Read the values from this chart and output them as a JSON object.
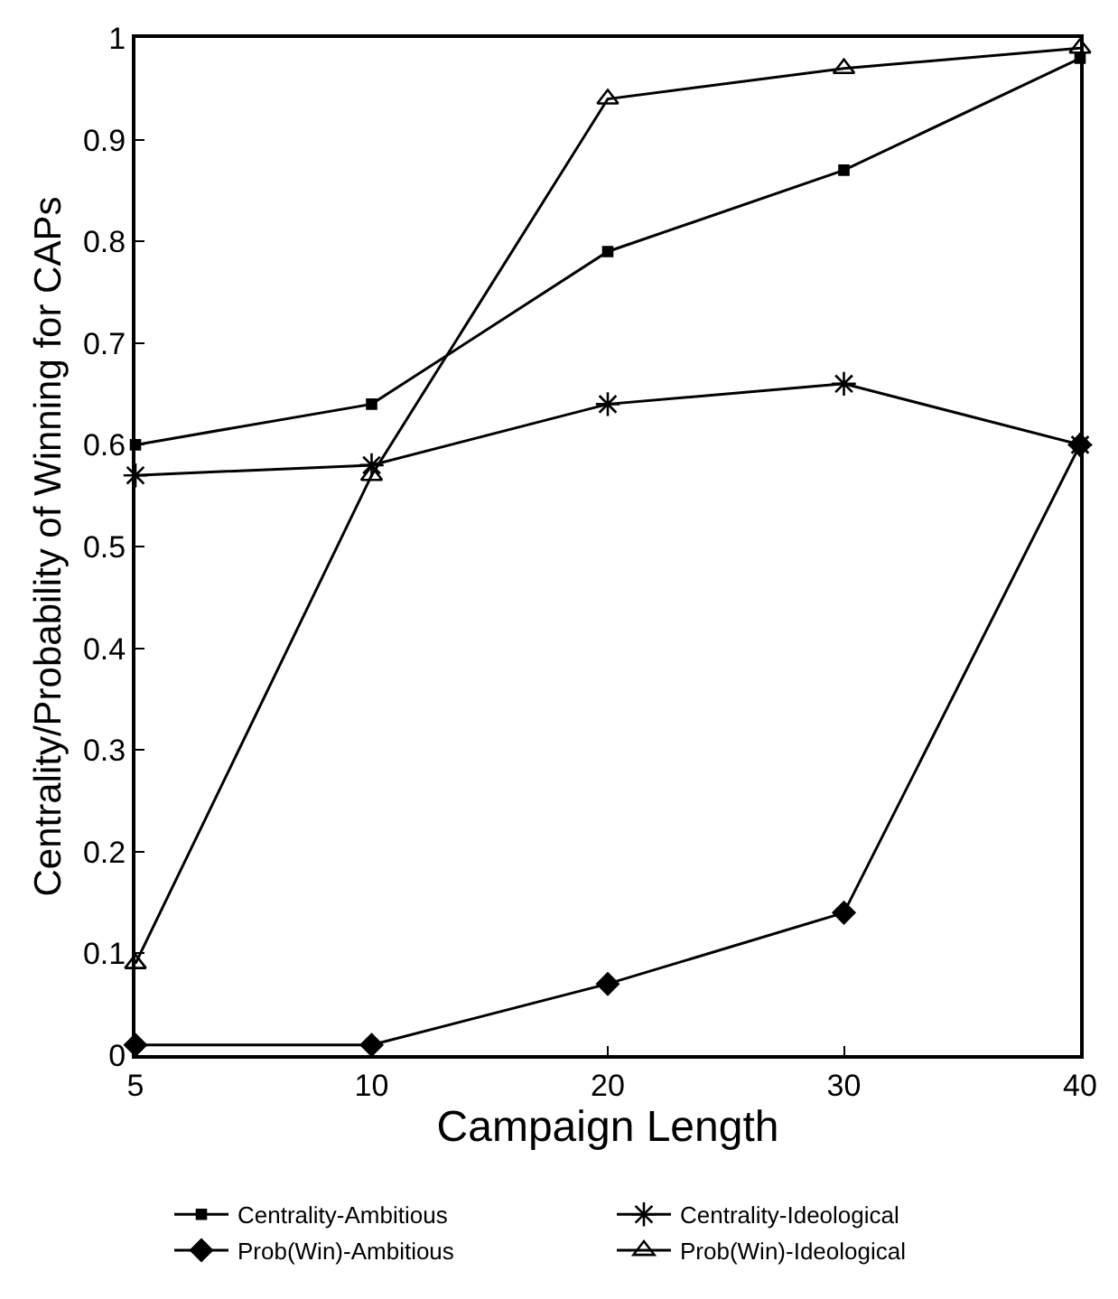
{
  "chart_data": {
    "type": "line",
    "xlabel": "Campaign Length",
    "ylabel": "Centrality/Probability of Winning for CAPs",
    "categories": [
      "5",
      "10",
      "20",
      "30",
      "40"
    ],
    "ylim": [
      0,
      1
    ],
    "yticks": [
      0,
      0.1,
      0.2,
      0.3,
      0.4,
      0.5,
      0.6,
      0.7,
      0.8,
      0.9,
      1
    ],
    "legend": "bottom",
    "line_style": "solid",
    "series": [
      {
        "name": "Centrality-Ambitious",
        "color": "#000000",
        "marker": "square",
        "values": [
          0.6,
          0.64,
          0.79,
          0.87,
          0.98
        ]
      },
      {
        "name": "Centrality-Ideological",
        "color": "#000000",
        "marker": "cross",
        "values": [
          0.57,
          0.58,
          0.64,
          0.66,
          0.6
        ]
      },
      {
        "name": "Prob(Win)-Ambitious",
        "color": "#000000",
        "marker": "diamond",
        "values": [
          0.01,
          0.01,
          0.07,
          0.14,
          0.6
        ]
      },
      {
        "name": "Prob(Win)-Ideological",
        "color": "#000000",
        "marker": "triangle",
        "values": [
          0.09,
          0.57,
          0.94,
          0.97,
          0.99
        ]
      }
    ]
  }
}
